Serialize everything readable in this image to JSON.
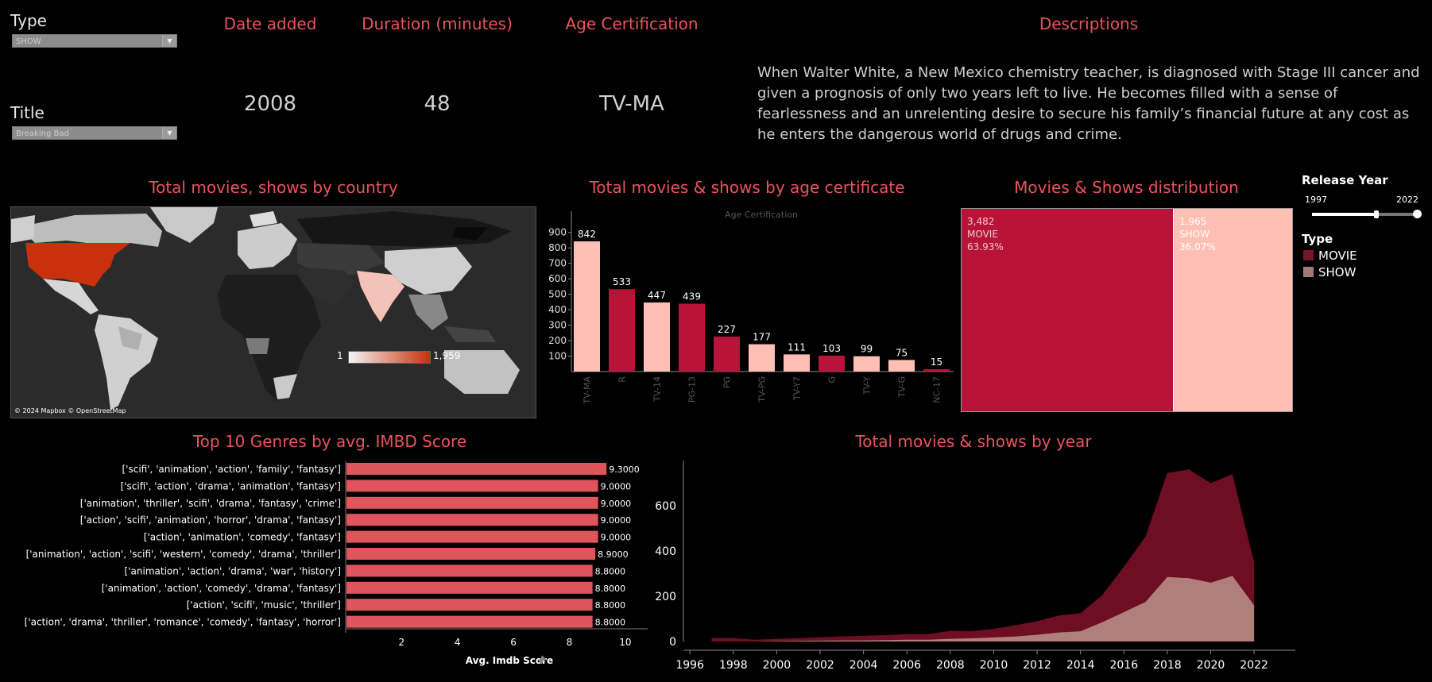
{
  "filters": {
    "type_label": "Type",
    "type_value": "SHOW",
    "title_label": "Title",
    "title_value": "Breaking Bad"
  },
  "kpis": [
    {
      "label": "Date added",
      "value": "2008"
    },
    {
      "label": "Duration (minutes)",
      "value": "48"
    },
    {
      "label": "Age Certification",
      "value": "TV-MA"
    }
  ],
  "description": {
    "label": "Descriptions",
    "text": "When Walter White, a New Mexico chemistry teacher, is diagnosed with Stage III cancer and given a prognosis of only two years left to live. He becomes filled with a sense of fearlessness and an unrelenting desire to secure his family’s financial future at any cost as he enters the dangerous world of drugs and crime."
  },
  "map": {
    "title": "Total movies, shows by country",
    "legend_min": "1",
    "legend_max": "1,959",
    "attribution": "© 2024 Mapbox © OpenStreetMap"
  },
  "sidebar": {
    "release_year_label": "Release Year",
    "year_min": "1997",
    "year_max": "2022",
    "type_label": "Type",
    "type_items": [
      {
        "label": "MOVIE",
        "color": "#7a1428"
      },
      {
        "label": "SHOW",
        "color": "#a07a78"
      }
    ]
  },
  "colors": {
    "header": "#e8545c",
    "movie": "#b81439",
    "show": "#ffbfb5",
    "genre_bar": "#e0545c",
    "area_movie": "#6e0e22",
    "area_show": "#b07f7c"
  },
  "chart_data": [
    {
      "type": "bar",
      "title": "Total movies & shows by age certificate",
      "xlabel": "Age Certification",
      "categories": [
        "TV-MA",
        "R",
        "TV-14",
        "PG-13",
        "PG",
        "TV-PG",
        "TV-Y7",
        "G",
        "TV-Y",
        "TV-G",
        "NC-17"
      ],
      "values": [
        842,
        533,
        447,
        439,
        227,
        177,
        111,
        103,
        99,
        75,
        15
      ],
      "labels": [
        "842",
        "533",
        "447",
        "439",
        "227",
        "177",
        "111",
        "103",
        "99",
        "75",
        "15"
      ],
      "kind": [
        "SHOW",
        "MOVIE",
        "SHOW",
        "MOVIE",
        "MOVIE",
        "SHOW",
        "SHOW",
        "MOVIE",
        "SHOW",
        "SHOW",
        "MOVIE"
      ],
      "yticks": [
        "100",
        "200",
        "300",
        "400",
        "500",
        "600",
        "700",
        "800",
        "900"
      ],
      "ylim": [
        0,
        950
      ]
    },
    {
      "type": "treemap",
      "title": "Movies & Shows distribution",
      "items": [
        {
          "count": "3,482",
          "name": "MOVIE",
          "pct": "63.93%",
          "value": 3482
        },
        {
          "count": "1,965",
          "name": "SHOW",
          "pct": "36.07%",
          "value": 1965
        }
      ]
    },
    {
      "type": "bar",
      "orientation": "horizontal",
      "title": "Top 10 Genres by avg. IMBD Score",
      "xlabel": "Avg. Imdb Score",
      "categories": [
        "['scifi', 'animation', 'action', 'family', 'fantasy']",
        "['scifi', 'action', 'drama', 'animation', 'fantasy']",
        "['animation', 'thriller', 'scifi', 'drama', 'fantasy', 'crime']",
        "['action', 'scifi', 'animation', 'horror', 'drama', 'fantasy']",
        "['action', 'animation', 'comedy', 'fantasy']",
        "['animation', 'action', 'scifi', 'western', 'comedy', 'drama', 'thriller']",
        "['animation', 'action', 'drama', 'war', 'history']",
        "['animation', 'action', 'comedy', 'drama', 'fantasy']",
        "['action', 'scifi', 'music', 'thriller']",
        "['action', 'drama', 'thriller', 'romance', 'comedy', 'fantasy', 'horror']"
      ],
      "values": [
        9.3,
        9.0,
        9.0,
        9.0,
        9.0,
        8.9,
        8.8,
        8.8,
        8.8,
        8.8
      ],
      "labels": [
        "9.3000",
        "9.0000",
        "9.0000",
        "9.0000",
        "9.0000",
        "8.9000",
        "8.8000",
        "8.8000",
        "8.8000",
        "8.8000"
      ],
      "xticks": [
        "2",
        "4",
        "6",
        "8",
        "10"
      ],
      "xlim": [
        0,
        10.8
      ]
    },
    {
      "type": "area",
      "title": "Total movies & shows by year",
      "x": [
        1997,
        1998,
        1999,
        2000,
        2001,
        2002,
        2003,
        2004,
        2005,
        2006,
        2007,
        2008,
        2009,
        2010,
        2011,
        2012,
        2013,
        2014,
        2015,
        2016,
        2017,
        2018,
        2019,
        2020,
        2021,
        2022
      ],
      "series": [
        {
          "name": "MOVIE",
          "values": [
            15,
            15,
            8,
            10,
            12,
            15,
            18,
            20,
            22,
            25,
            25,
            35,
            32,
            38,
            50,
            60,
            75,
            80,
            120,
            200,
            290,
            460,
            480,
            440,
            450,
            190
          ]
        },
        {
          "name": "SHOW",
          "values": [
            0,
            0,
            0,
            2,
            3,
            4,
            5,
            5,
            6,
            8,
            8,
            12,
            14,
            18,
            22,
            30,
            40,
            45,
            85,
            130,
            175,
            285,
            280,
            260,
            290,
            160
          ]
        }
      ],
      "stacked": true,
      "yticks": [
        "0",
        "200",
        "400",
        "600"
      ],
      "xticks": [
        "1996",
        "1998",
        "2000",
        "2002",
        "2004",
        "2006",
        "2008",
        "2010",
        "2012",
        "2014",
        "2016",
        "2018",
        "2020",
        "2022"
      ],
      "ylim": [
        0,
        800
      ],
      "xlim": [
        1995.7,
        2023.9
      ]
    }
  ]
}
